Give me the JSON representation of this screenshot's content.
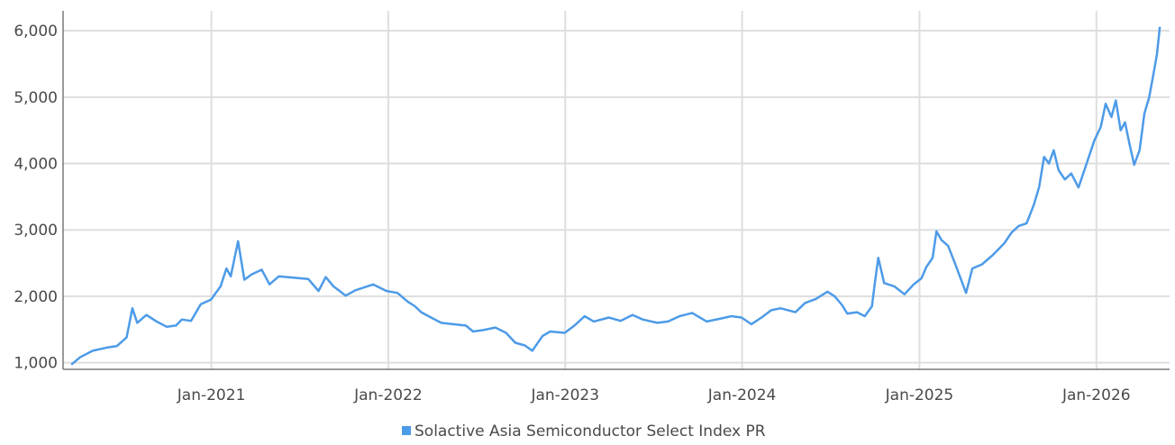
{
  "chart_data": {
    "type": "line",
    "title": "",
    "xlabel": "",
    "ylabel": "",
    "ylim": [
      900,
      6300
    ],
    "xlim": [
      "2020-03-01",
      "2026-06-01"
    ],
    "yticks": [
      1000,
      2000,
      3000,
      4000,
      5000,
      6000
    ],
    "ytick_labels": [
      "1,000",
      "2,000",
      "3,000",
      "4,000",
      "5,000",
      "6,000"
    ],
    "xticks": [
      "2021-01-01",
      "2022-01-01",
      "2023-01-01",
      "2024-01-01",
      "2025-01-01",
      "2026-01-01"
    ],
    "xtick_labels": [
      "Jan-2021",
      "Jan-2022",
      "Jan-2023",
      "Jan-2024",
      "Jan-2025",
      "Jan-2026"
    ],
    "grid": true,
    "legend_position": "bottom-center",
    "series": [
      {
        "name": "Solactive Asia Semiconductor Select Index PR",
        "color": "#4d9be8",
        "points": [
          [
            "2020-03-18",
            970
          ],
          [
            "2020-04-05",
            1080
          ],
          [
            "2020-05-01",
            1180
          ],
          [
            "2020-06-01",
            1230
          ],
          [
            "2020-06-20",
            1250
          ],
          [
            "2020-07-10",
            1380
          ],
          [
            "2020-07-22",
            1820
          ],
          [
            "2020-08-01",
            1600
          ],
          [
            "2020-08-20",
            1720
          ],
          [
            "2020-09-10",
            1620
          ],
          [
            "2020-10-01",
            1540
          ],
          [
            "2020-10-20",
            1560
          ],
          [
            "2020-11-01",
            1650
          ],
          [
            "2020-11-20",
            1630
          ],
          [
            "2020-12-10",
            1880
          ],
          [
            "2020-12-31",
            1950
          ],
          [
            "2021-01-20",
            2150
          ],
          [
            "2021-02-01",
            2420
          ],
          [
            "2021-02-10",
            2300
          ],
          [
            "2021-02-25",
            2830
          ],
          [
            "2021-03-10",
            2250
          ],
          [
            "2021-03-25",
            2330
          ],
          [
            "2021-04-15",
            2400
          ],
          [
            "2021-05-01",
            2180
          ],
          [
            "2021-05-20",
            2300
          ],
          [
            "2021-06-20",
            2280
          ],
          [
            "2021-07-20",
            2260
          ],
          [
            "2021-08-10",
            2080
          ],
          [
            "2021-08-25",
            2290
          ],
          [
            "2021-09-10",
            2150
          ],
          [
            "2021-10-05",
            2010
          ],
          [
            "2021-10-25",
            2090
          ],
          [
            "2021-12-01",
            2180
          ],
          [
            "2021-12-28",
            2080
          ],
          [
            "2022-01-20",
            2050
          ],
          [
            "2022-02-10",
            1920
          ],
          [
            "2022-02-25",
            1850
          ],
          [
            "2022-03-10",
            1760
          ],
          [
            "2022-03-25",
            1700
          ],
          [
            "2022-04-20",
            1600
          ],
          [
            "2022-05-15",
            1580
          ],
          [
            "2022-06-10",
            1560
          ],
          [
            "2022-06-25",
            1470
          ],
          [
            "2022-07-15",
            1490
          ],
          [
            "2022-08-10",
            1530
          ],
          [
            "2022-09-01",
            1450
          ],
          [
            "2022-09-20",
            1300
          ],
          [
            "2022-10-10",
            1260
          ],
          [
            "2022-10-25",
            1180
          ],
          [
            "2022-11-15",
            1400
          ],
          [
            "2022-12-01",
            1470
          ],
          [
            "2022-12-31",
            1450
          ],
          [
            "2023-01-20",
            1560
          ],
          [
            "2023-02-10",
            1700
          ],
          [
            "2023-03-01",
            1620
          ],
          [
            "2023-04-01",
            1680
          ],
          [
            "2023-04-25",
            1630
          ],
          [
            "2023-05-20",
            1720
          ],
          [
            "2023-06-10",
            1650
          ],
          [
            "2023-07-10",
            1600
          ],
          [
            "2023-08-01",
            1620
          ],
          [
            "2023-08-25",
            1700
          ],
          [
            "2023-09-20",
            1750
          ],
          [
            "2023-10-20",
            1620
          ],
          [
            "2023-11-15",
            1660
          ],
          [
            "2023-12-10",
            1700
          ],
          [
            "2023-12-31",
            1680
          ],
          [
            "2024-01-20",
            1580
          ],
          [
            "2024-02-10",
            1680
          ],
          [
            "2024-03-01",
            1790
          ],
          [
            "2024-03-20",
            1820
          ],
          [
            "2024-04-20",
            1760
          ],
          [
            "2024-05-10",
            1900
          ],
          [
            "2024-06-01",
            1960
          ],
          [
            "2024-06-25",
            2070
          ],
          [
            "2024-07-10",
            2000
          ],
          [
            "2024-07-25",
            1870
          ],
          [
            "2024-08-05",
            1740
          ],
          [
            "2024-08-25",
            1760
          ],
          [
            "2024-09-10",
            1700
          ],
          [
            "2024-09-25",
            1850
          ],
          [
            "2024-10-01",
            2210
          ],
          [
            "2024-10-08",
            2580
          ],
          [
            "2024-10-20",
            2200
          ],
          [
            "2024-11-10",
            2150
          ],
          [
            "2024-12-01",
            2030
          ],
          [
            "2024-12-20",
            2180
          ],
          [
            "2025-01-05",
            2270
          ],
          [
            "2025-01-15",
            2440
          ],
          [
            "2025-01-28",
            2580
          ],
          [
            "2025-02-05",
            2980
          ],
          [
            "2025-02-15",
            2850
          ],
          [
            "2025-03-01",
            2760
          ],
          [
            "2025-03-15",
            2500
          ],
          [
            "2025-04-07",
            2050
          ],
          [
            "2025-04-20",
            2420
          ],
          [
            "2025-05-10",
            2480
          ],
          [
            "2025-06-01",
            2620
          ],
          [
            "2025-06-25",
            2800
          ],
          [
            "2025-07-10",
            2960
          ],
          [
            "2025-07-25",
            3060
          ],
          [
            "2025-08-10",
            3100
          ],
          [
            "2025-08-25",
            3380
          ],
          [
            "2025-09-05",
            3650
          ],
          [
            "2025-09-15",
            4100
          ],
          [
            "2025-09-25",
            4000
          ],
          [
            "2025-10-05",
            4200
          ],
          [
            "2025-10-15",
            3900
          ],
          [
            "2025-10-28",
            3760
          ],
          [
            "2025-11-10",
            3850
          ],
          [
            "2025-11-25",
            3640
          ],
          [
            "2025-12-10",
            3960
          ],
          [
            "2025-12-28",
            4350
          ],
          [
            "2026-01-10",
            4550
          ],
          [
            "2026-01-20",
            4900
          ],
          [
            "2026-02-01",
            4700
          ],
          [
            "2026-02-10",
            4950
          ],
          [
            "2026-02-20",
            4500
          ],
          [
            "2026-03-01",
            4620
          ],
          [
            "2026-03-10",
            4300
          ],
          [
            "2026-03-20",
            3980
          ],
          [
            "2026-03-31",
            4200
          ],
          [
            "2026-04-10",
            4750
          ],
          [
            "2026-04-20",
            5000
          ],
          [
            "2026-04-30",
            5400
          ],
          [
            "2026-05-06",
            5650
          ],
          [
            "2026-05-12",
            6060
          ]
        ]
      }
    ]
  }
}
